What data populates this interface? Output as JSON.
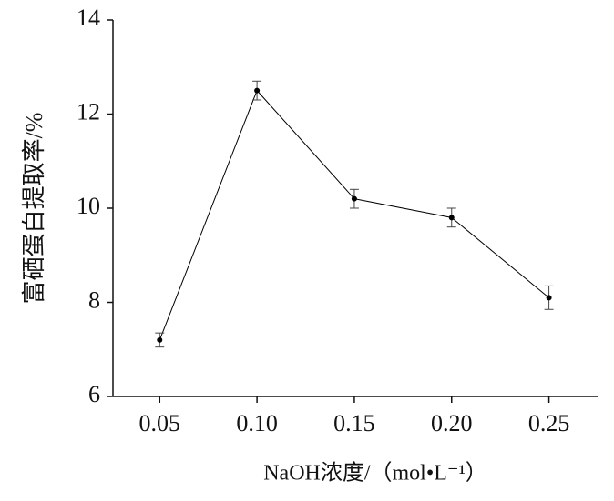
{
  "chart_data": {
    "type": "line",
    "x_label": "NaOH浓度/（mol•L⁻¹）",
    "y_label": "富硒蛋白提取率/%",
    "x": [
      0.05,
      0.1,
      0.15,
      0.2,
      0.25
    ],
    "series": [
      {
        "color": "#000000",
        "values": [
          7.2,
          12.5,
          10.2,
          9.8,
          8.1
        ],
        "errors": [
          0.15,
          0.2,
          0.2,
          0.2,
          0.25
        ]
      }
    ],
    "xlim": [
      0.026,
      0.275
    ],
    "xticks": [
      0.05,
      {
        "value": 0.1,
        "label": "0.10"
      },
      0.15,
      {
        "value": 0.2,
        "label": "0.20"
      },
      0.25
    ],
    "ylim": [
      6,
      14
    ],
    "yticks": [
      6,
      8,
      10,
      12,
      14
    ]
  }
}
